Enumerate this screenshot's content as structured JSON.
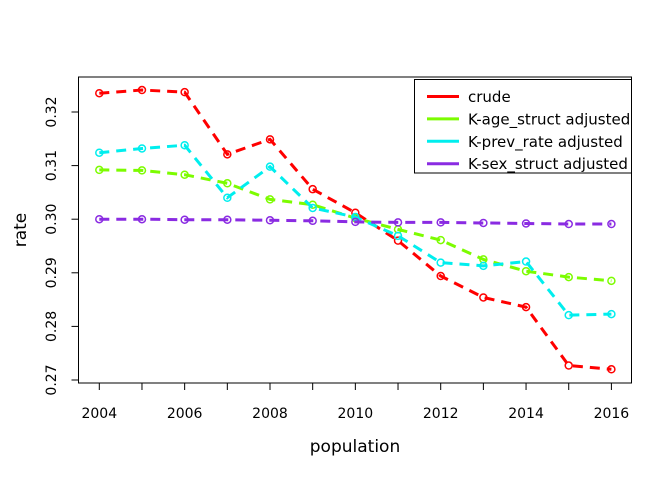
{
  "figure": {
    "background": "#FFFFFF",
    "axis_color": "#000000",
    "text_color": "#000000"
  },
  "chart_data": {
    "type": "line",
    "title": "",
    "xlabel": "population",
    "ylabel": "rate",
    "grid": false,
    "line_style": "dashed",
    "marker": "open-circle",
    "legend_position": "top-right",
    "xlim": [
      2003.51,
      2016.47
    ],
    "ylim": [
      0.2694,
      0.3265
    ],
    "x": [
      2004,
      2005,
      2006,
      2007,
      2008,
      2009,
      2010,
      2011,
      2012,
      2013,
      2014,
      2015,
      2016
    ],
    "x_tick_labels": [
      "2004",
      "2006",
      "2008",
      "2010",
      "2012",
      "2014",
      "2016"
    ],
    "y_tick_labels": [
      "0.27",
      "0.28",
      "0.29",
      "0.30",
      "0.31",
      "0.32"
    ],
    "series": [
      {
        "name": "crude",
        "color": "#FF0000",
        "values": [
          0.3235,
          0.3241,
          0.3237,
          0.3121,
          0.3149,
          0.3056,
          0.3012,
          0.296,
          0.2894,
          0.2854,
          0.2836,
          0.2727,
          0.272
        ]
      },
      {
        "name": "K-age_struct adjusted",
        "color": "#7CFC00",
        "values": [
          0.3092,
          0.3091,
          0.3083,
          0.3067,
          0.3037,
          0.3027,
          0.3002,
          0.2981,
          0.2961,
          0.2925,
          0.2903,
          0.2892,
          0.2885
        ]
      },
      {
        "name": "K-prev_rate adjusted",
        "color": "#00EEEE",
        "values": [
          0.3124,
          0.3132,
          0.3138,
          0.304,
          0.3098,
          0.3021,
          0.3004,
          0.2969,
          0.2919,
          0.2913,
          0.2921,
          0.2821,
          0.2823
        ]
      },
      {
        "name": "K-sex_struct adjusted",
        "color": "#8A2BE2",
        "values": [
          0.3,
          0.3,
          0.2999,
          0.2999,
          0.2998,
          0.2997,
          0.2995,
          0.2994,
          0.2994,
          0.2993,
          0.2992,
          0.2991,
          0.2991
        ]
      }
    ]
  }
}
